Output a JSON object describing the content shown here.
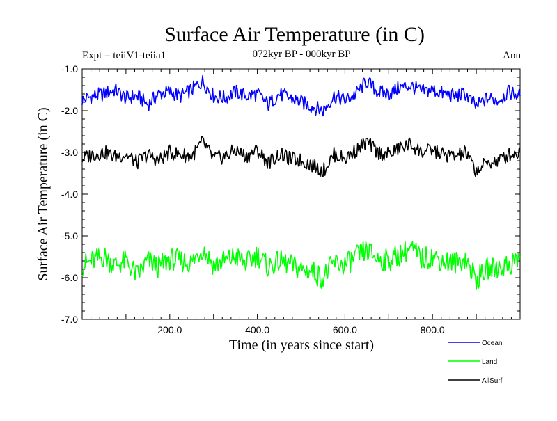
{
  "chart_data": {
    "type": "line",
    "title": "Surface Air Temperature (in C)",
    "subtitle": "072kyr BP - 000kyr BP",
    "expt_label": "Expt = teiiV1-teiia1",
    "season_label": "Ann",
    "xlabel": "Time (in years since start)",
    "ylabel": "Surface Air Temperature (in C)",
    "xlim": [
      0,
      1000
    ],
    "ylim": [
      -7.0,
      -1.0
    ],
    "xticks": [
      200,
      400,
      600,
      800
    ],
    "xtick_labels": [
      "200.0",
      "400.0",
      "600.0",
      "800.0"
    ],
    "yticks": [
      -1.0,
      -2.0,
      -3.0,
      -4.0,
      -5.0,
      -6.0,
      -7.0
    ],
    "ytick_labels": [
      "-1.0",
      "-2.0",
      "-3.0",
      "-4.0",
      "-5.0",
      "-6.0",
      "-7.0"
    ],
    "grid": false,
    "legend_position": "bottom-right, below plot",
    "x": [
      0,
      25,
      50,
      75,
      100,
      125,
      150,
      175,
      200,
      225,
      250,
      275,
      300,
      325,
      350,
      375,
      400,
      425,
      450,
      475,
      500,
      525,
      550,
      575,
      600,
      625,
      650,
      675,
      700,
      725,
      750,
      775,
      800,
      825,
      850,
      875,
      900,
      925,
      950,
      975,
      1000
    ],
    "series": [
      {
        "name": "Ocean",
        "color": "#0000ff",
        "values": [
          -1.75,
          -1.65,
          -1.6,
          -1.5,
          -1.7,
          -1.65,
          -1.85,
          -1.6,
          -1.55,
          -1.65,
          -1.5,
          -1.3,
          -1.65,
          -1.7,
          -1.55,
          -1.65,
          -1.6,
          -1.85,
          -1.6,
          -1.7,
          -1.8,
          -1.9,
          -2.0,
          -1.65,
          -1.75,
          -1.6,
          -1.3,
          -1.55,
          -1.6,
          -1.45,
          -1.4,
          -1.55,
          -1.5,
          -1.6,
          -1.65,
          -1.6,
          -1.9,
          -1.7,
          -1.75,
          -1.55,
          -1.65
        ]
      },
      {
        "name": "Land",
        "color": "#00ff00",
        "values": [
          -5.7,
          -5.6,
          -5.5,
          -5.7,
          -5.6,
          -5.95,
          -5.6,
          -5.75,
          -5.55,
          -5.6,
          -5.65,
          -5.3,
          -5.7,
          -5.6,
          -5.5,
          -5.65,
          -5.45,
          -5.75,
          -5.6,
          -5.7,
          -5.8,
          -5.85,
          -6.0,
          -5.65,
          -5.7,
          -5.5,
          -5.35,
          -5.55,
          -5.6,
          -5.45,
          -5.3,
          -5.55,
          -5.5,
          -5.6,
          -5.65,
          -5.55,
          -6.05,
          -5.8,
          -5.75,
          -5.7,
          -5.5
        ]
      },
      {
        "name": "AllSurf",
        "color": "#000000",
        "values": [
          -3.15,
          -3.05,
          -3.0,
          -3.1,
          -3.05,
          -3.25,
          -3.05,
          -3.2,
          -3.0,
          -3.05,
          -3.1,
          -2.75,
          -3.15,
          -3.1,
          -2.95,
          -3.1,
          -2.95,
          -3.25,
          -3.05,
          -3.15,
          -3.2,
          -3.3,
          -3.45,
          -3.05,
          -3.15,
          -2.95,
          -2.75,
          -3.0,
          -3.05,
          -2.9,
          -2.8,
          -3.0,
          -2.95,
          -3.05,
          -3.1,
          -3.0,
          -3.45,
          -3.25,
          -3.2,
          -3.05,
          -3.0
        ]
      }
    ]
  }
}
